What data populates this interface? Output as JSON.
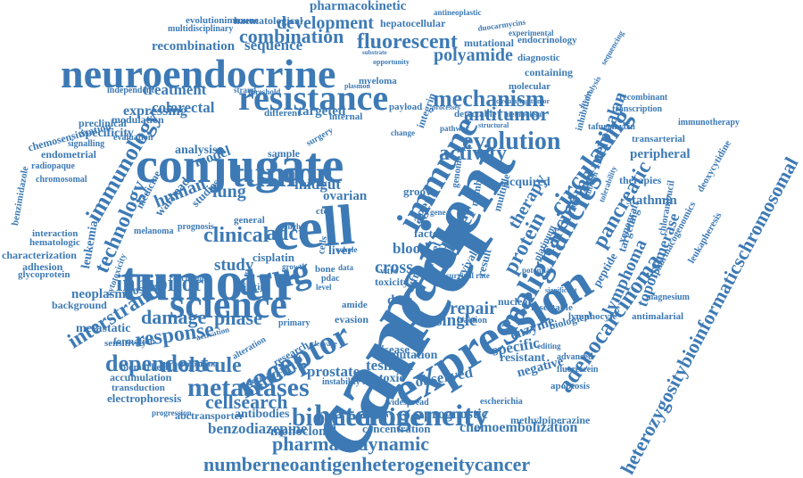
{
  "color": "#3d7ab5",
  "words": [
    "cancer",
    "patient",
    "tumour",
    "cell",
    "conjugate",
    "expression",
    "neuroendocrine",
    "science",
    "resistance",
    "tumor",
    "drug",
    "immune",
    "malignancies",
    "heterogeneity",
    "heterozygositybioinformaticschromosomal",
    "numberneoantigenheterogeneitycancer",
    "pharmacodynamic",
    "biomedicine",
    "adenocarcinoma",
    "circulating",
    "technology",
    "immunology",
    "receptor",
    "clinical",
    "adct",
    "evolution",
    "protein",
    "carcinoma",
    "pancreatic",
    "metastases",
    "interstrand",
    "inhibitor",
    "response",
    "dependent",
    "damage",
    "phase",
    "molecule",
    "binding",
    "fluorescent",
    "combination",
    "mechanism",
    "activity",
    "antitumor",
    "polyamide",
    "development",
    "pharmacokinetic",
    "recombination",
    "sequence",
    "treatment",
    "colorectal",
    "expressing",
    "human",
    "lung",
    "model",
    "midgut",
    "study",
    "cellsearch",
    "benzodiazepine",
    "monoclonal",
    "prognostic",
    "chemoembolization",
    "antibodies",
    "prostate",
    "tesirine",
    "cytotoxic",
    "observed",
    "specific",
    "enzyme",
    "resistant",
    "negative",
    "repair",
    "dimer",
    "therapy",
    "single",
    "survival",
    "lymphoma",
    "topoisomerase",
    "stathmin",
    "melphalan",
    "peripheral",
    "transarterial",
    "targeting",
    "immunotherapy",
    "metastatic",
    "neoplasm",
    "positive",
    "leukemia",
    "specificity",
    "endometrial",
    "chromosomal",
    "radiopaque",
    "signalling",
    "interaction",
    "hematologic",
    "characterization",
    "adhesion",
    "glycoprotein",
    "background",
    "sensitivity",
    "accumulation",
    "electrophoresis",
    "transduction",
    "abctransporter",
    "biomarkers",
    "formation",
    "preclinical",
    "modulation",
    "independent",
    "multidisciplinary",
    "evolutionimmune",
    "haematological",
    "hepatocellular",
    "antineoplastic",
    "duocarmycins",
    "mutational",
    "endocrinology",
    "experimental",
    "diagnostic",
    "containing",
    "molecular",
    "hydrolysis",
    "recombinant",
    "transcription",
    "tafuramycin",
    "inhibition",
    "magnesium",
    "antimalarial",
    "pharmacogenomics",
    "methylpiperazine",
    "concentration",
    "cisplatin",
    "analysis",
    "ovarian",
    "cross",
    "blood",
    "agent",
    "factor",
    "dose",
    "egfr",
    "novel",
    "result",
    "acquired",
    "mutation",
    "disease",
    "nuclear",
    "advanced",
    "apoptosis",
    "biological",
    "peptide",
    "xenograft",
    "platinum",
    "targeted",
    "different",
    "payload",
    "internal",
    "myeloma",
    "plasmon",
    "integrin",
    "liver",
    "cells",
    "toxicity",
    "groove",
    "number",
    "genome",
    "multiple",
    "warhead",
    "medicine",
    "sample",
    "general",
    "bone",
    "data",
    "pdac",
    "survival rate",
    "evasion",
    "fraction",
    "cleavage",
    "instability",
    "widespread",
    "escherichia",
    "resectable",
    "conclusion",
    "alteration",
    "research",
    "primary",
    "antibiotic",
    "progression",
    "component",
    "lymphocyte",
    "fluorescein",
    "therapies",
    "leukapheresis",
    "chlorambucil",
    "deoxycytidine",
    "activation",
    "linking",
    "growth",
    "studies",
    "ctcs",
    "substrate",
    "opportunity",
    "strand",
    "detectable",
    "metabolism",
    "circulating tumor",
    "sequencing",
    "significant",
    "potential",
    "cytotoxicity",
    "benzimidazole",
    "chemosensitisation",
    "evaluation",
    "melanoma",
    "prognosis",
    "threshold",
    "amide",
    "vitro",
    "escape",
    "editing",
    "tolerability",
    "tubulin",
    "pathway",
    "processes",
    "higher",
    "surgery",
    "structural",
    "change",
    "level",
    "gene",
    "whole"
  ]
}
